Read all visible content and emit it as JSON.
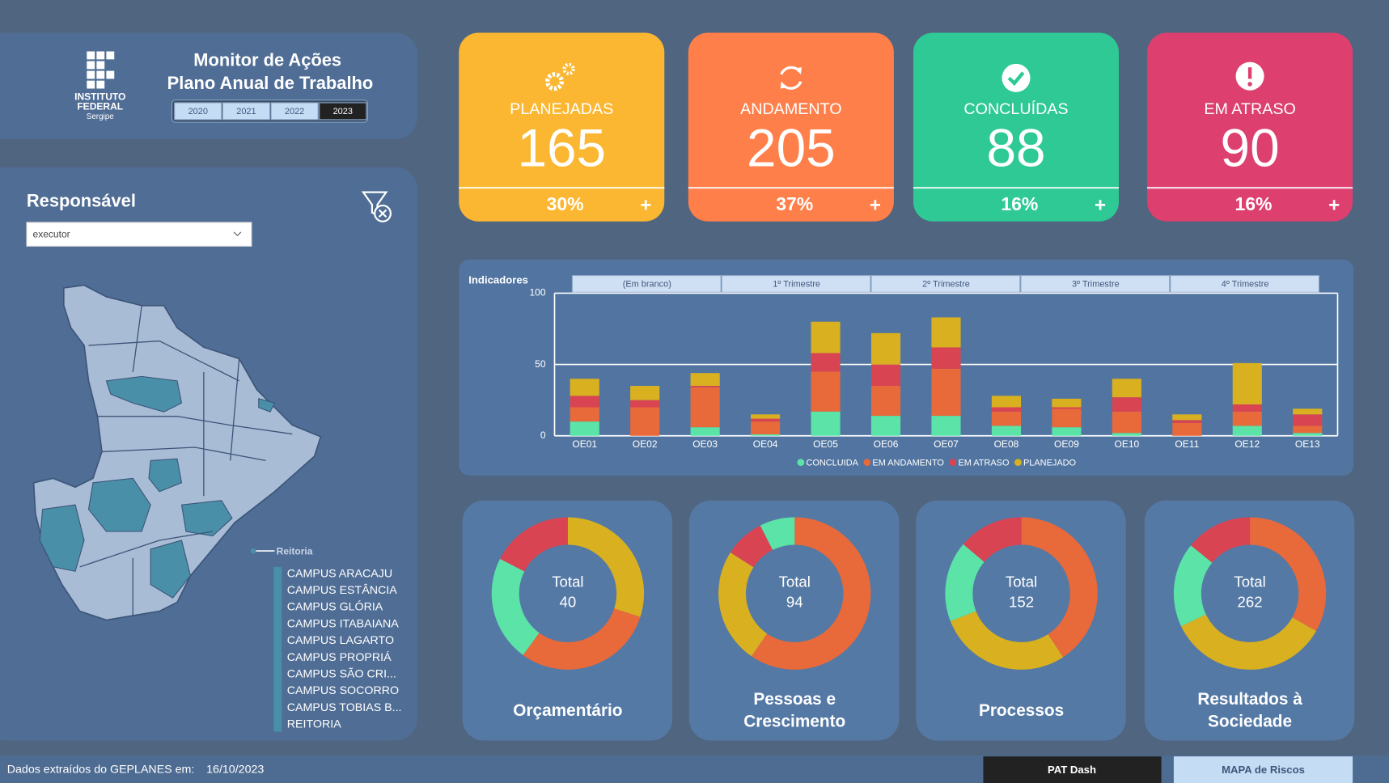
{
  "header": {
    "title_lines": [
      "Monitor de Ações",
      "Plano Anual de Trabalho"
    ],
    "logo_lines": [
      "INSTITUTO",
      "FEDERAL",
      "Sergipe"
    ],
    "years": [
      "2020",
      "2021",
      "2022",
      "2023"
    ],
    "selected": "2023"
  },
  "cards": [
    {
      "label": "PLANEJADAS",
      "value": 165,
      "percent": "30%",
      "action": "+",
      "color": "#fbb731"
    },
    {
      "label": "ANDAMENTO",
      "value": 205,
      "percent": "37%",
      "action": "+",
      "color": "#ff7f4a"
    },
    {
      "label": "CONCLUÍDAS",
      "value": 88,
      "percent": "16%",
      "action": "+",
      "color": "#2ec995"
    },
    {
      "label": "EM ATRASO",
      "value": 90,
      "percent": "16%",
      "action": "+",
      "color": "#dd3f6f"
    }
  ],
  "filter": {
    "title": "Responsável",
    "dropdown": "executor"
  },
  "map": {
    "marker": "Reitoria",
    "legend": [
      "CAMPUS ARACAJU",
      "CAMPUS ESTÂNCIA",
      "CAMPUS GLÓRIA",
      "CAMPUS ITABAIANA",
      "CAMPUS LAGARTO",
      "CAMPUS PROPRIÁ",
      "CAMPUS SÃO CRI...",
      "CAMPUS SOCORRO",
      "CAMPUS TOBIAS B...",
      "REITORIA"
    ]
  },
  "chart_data": [
    {
      "type": "bar",
      "stacked": true,
      "title": "Indicadores",
      "tabs": [
        "(Em branco)",
        "1º Trimestre",
        "2º Trimestre",
        "3º Trimestre",
        "4º Trimestre"
      ],
      "categories": [
        "OE01",
        "OE02",
        "OE03",
        "OE04",
        "OE05",
        "OE06",
        "OE07",
        "OE08",
        "OE09",
        "OE10",
        "OE11",
        "OE12",
        "OE13"
      ],
      "series": [
        {
          "name": "CONCLUIDA",
          "color": "#5be3a8",
          "values": [
            10,
            0,
            6,
            1,
            17,
            14,
            14,
            7,
            6,
            2,
            0,
            7,
            2
          ]
        },
        {
          "name": "EM ANDAMENTO",
          "color": "#e8693a",
          "values": [
            10,
            20,
            28,
            9,
            28,
            21,
            33,
            10,
            13,
            15,
            9,
            10,
            5
          ]
        },
        {
          "name": "EM ATRASO",
          "color": "#d94452",
          "values": [
            8,
            5,
            1,
            2,
            13,
            15,
            15,
            3,
            1,
            10,
            2,
            5,
            8
          ]
        },
        {
          "name": "PLANEJADO",
          "color": "#d8b020",
          "values": [
            12,
            10,
            9,
            3,
            22,
            22,
            21,
            8,
            6,
            13,
            4,
            29,
            4
          ]
        }
      ],
      "ylim": [
        0,
        100
      ],
      "yticks": [
        0,
        50,
        100
      ],
      "grid": true
    },
    {
      "type": "pie",
      "title_lines": [
        "Orçamentário"
      ],
      "total_label": "Total",
      "total": 40,
      "values": [
        12,
        12,
        9,
        7
      ],
      "colors": [
        "#d8b020",
        "#e8693a",
        "#5be3a8",
        "#d94452"
      ]
    },
    {
      "type": "pie",
      "title_lines": [
        "Pessoas e",
        "Crescimento"
      ],
      "total_label": "Total",
      "total": 94,
      "values": [
        56,
        23,
        8,
        7
      ],
      "colors": [
        "#e8693a",
        "#d8b020",
        "#d94452",
        "#5be3a8"
      ]
    },
    {
      "type": "pie",
      "title_lines": [
        "Processos"
      ],
      "total_label": "Total",
      "total": 152,
      "values": [
        62,
        43,
        26,
        21
      ],
      "colors": [
        "#e8693a",
        "#d8b020",
        "#5be3a8",
        "#d94452"
      ]
    },
    {
      "type": "pie",
      "title_lines": [
        "Resultados à",
        "Sociedade"
      ],
      "total_label": "Total",
      "total": 262,
      "values": [
        87,
        91,
        47,
        37
      ],
      "colors": [
        "#e8693a",
        "#d8b020",
        "#5be3a8",
        "#d94452"
      ]
    }
  ],
  "footer": {
    "note": "Dados extraídos do GEPLANES em:",
    "date": "16/10/2023",
    "buttons": [
      "PAT Dash",
      "MAPA de Riscos"
    ]
  }
}
